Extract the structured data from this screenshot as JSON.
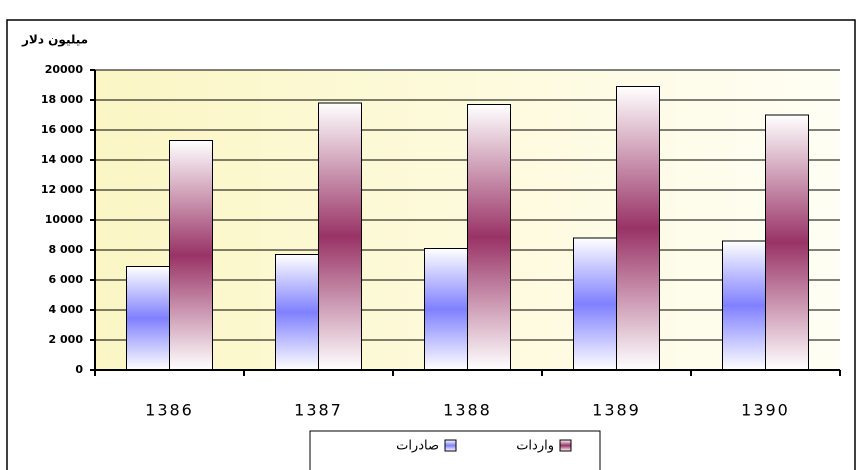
{
  "chart_data": {
    "type": "bar",
    "y_label": "میلیون دلار",
    "categories": [
      "1386",
      "1387",
      "1388",
      "1389",
      "1390"
    ],
    "series": [
      {
        "name": "صادرات",
        "color": "#8080ff",
        "values": [
          6900,
          7700,
          8100,
          8800,
          8600
        ]
      },
      {
        "name": "واردات",
        "color": "#993366",
        "values": [
          15300,
          17800,
          17700,
          18900,
          17000
        ]
      }
    ],
    "ylim": [
      0,
      20000
    ],
    "yticks": [
      0,
      {
        "value": 2000,
        "label": "2 000"
      },
      {
        "value": 4000,
        "label": "4 000"
      },
      {
        "value": 6000,
        "label": "6 000"
      },
      {
        "value": 8000,
        "label": "8 000"
      },
      10000,
      {
        "value": 12000,
        "label": "12 000"
      },
      {
        "value": 14000,
        "label": "14 000"
      },
      {
        "value": 16000,
        "label": "16 000"
      },
      {
        "value": 18000,
        "label": "18 000"
      },
      20000
    ],
    "grid": true,
    "legend": "bottom"
  }
}
